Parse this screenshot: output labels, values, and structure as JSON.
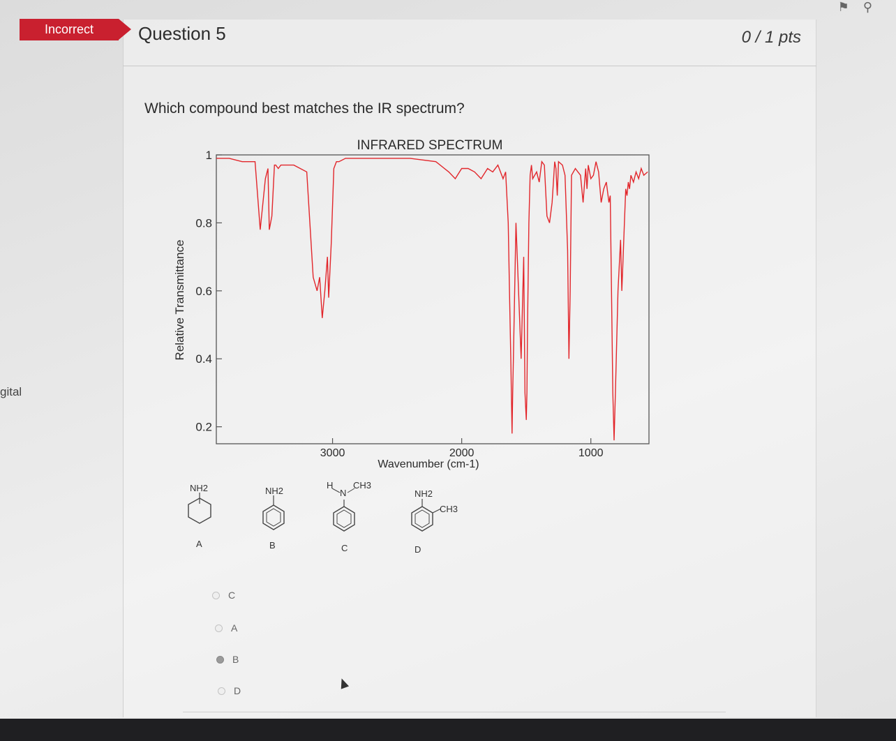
{
  "sidebar_fragment": "gital",
  "header": {
    "status_badge": "Incorrect",
    "question_title": "Question 5",
    "points": "0 / 1 pts"
  },
  "question": {
    "prompt": "Which compound best matches the IR spectrum?"
  },
  "chart_data": {
    "type": "line",
    "title": "INFRARED SPECTRUM",
    "xlabel": "Wavenumber (cm-1)",
    "ylabel": "Relative Transmittance",
    "x_reversed": true,
    "xlim": [
      3900,
      550
    ],
    "ylim": [
      0.15,
      1.0
    ],
    "xticks": [
      3000,
      2000,
      1000
    ],
    "yticks": [
      0.2,
      0.4,
      0.6,
      0.8,
      1
    ],
    "ytick_labels": [
      "0.2",
      "0.4",
      "0.6",
      "0.8",
      "1"
    ],
    "line_color": "#e2262b",
    "series": [
      {
        "x": [
          3900,
          3800,
          3700,
          3600,
          3560,
          3520,
          3500,
          3490,
          3470,
          3450,
          3440,
          3420,
          3400,
          3350,
          3300,
          3200,
          3150,
          3120,
          3100,
          3080,
          3060,
          3040,
          3030,
          3010,
          2990,
          2970,
          2950,
          2900,
          2800,
          2600,
          2400,
          2200,
          2100,
          2050,
          2000,
          1950,
          1900,
          1850,
          1800,
          1760,
          1720,
          1680,
          1660,
          1640,
          1630,
          1620,
          1610,
          1605,
          1600,
          1580,
          1560,
          1540,
          1520,
          1510,
          1500,
          1495,
          1490,
          1480,
          1470,
          1460,
          1450,
          1420,
          1400,
          1380,
          1360,
          1340,
          1320,
          1300,
          1280,
          1275,
          1270,
          1260,
          1250,
          1220,
          1200,
          1180,
          1170,
          1160,
          1150,
          1120,
          1100,
          1080,
          1060,
          1040,
          1030,
          1020,
          1000,
          980,
          960,
          940,
          920,
          900,
          880,
          860,
          850,
          840,
          830,
          820,
          810,
          790,
          770,
          760,
          750,
          740,
          730,
          720,
          710,
          700,
          690,
          670,
          650,
          630,
          610,
          590,
          560
        ],
        "values": [
          0.99,
          0.99,
          0.98,
          0.98,
          0.78,
          0.93,
          0.96,
          0.78,
          0.82,
          0.97,
          0.97,
          0.96,
          0.97,
          0.97,
          0.97,
          0.95,
          0.64,
          0.6,
          0.64,
          0.52,
          0.6,
          0.7,
          0.58,
          0.74,
          0.96,
          0.98,
          0.98,
          0.99,
          0.99,
          0.99,
          0.99,
          0.98,
          0.95,
          0.93,
          0.96,
          0.96,
          0.95,
          0.93,
          0.96,
          0.95,
          0.97,
          0.93,
          0.95,
          0.8,
          0.6,
          0.4,
          0.18,
          0.3,
          0.4,
          0.8,
          0.6,
          0.4,
          0.7,
          0.3,
          0.22,
          0.3,
          0.5,
          0.8,
          0.94,
          0.97,
          0.93,
          0.95,
          0.92,
          0.98,
          0.97,
          0.82,
          0.8,
          0.86,
          0.98,
          0.97,
          0.96,
          0.88,
          0.98,
          0.97,
          0.94,
          0.72,
          0.4,
          0.6,
          0.94,
          0.96,
          0.95,
          0.94,
          0.86,
          0.96,
          0.9,
          0.97,
          0.93,
          0.94,
          0.98,
          0.95,
          0.86,
          0.9,
          0.92,
          0.86,
          0.88,
          0.6,
          0.3,
          0.16,
          0.3,
          0.6,
          0.75,
          0.6,
          0.7,
          0.8,
          0.9,
          0.88,
          0.92,
          0.9,
          0.94,
          0.92,
          0.95,
          0.93,
          0.96,
          0.94,
          0.95
        ]
      }
    ]
  },
  "compounds": [
    {
      "label": "A",
      "substituents": [
        "NH2"
      ],
      "ring": "cyclohexane"
    },
    {
      "label": "B",
      "substituents": [
        "NH2"
      ],
      "ring": "benzene"
    },
    {
      "label": "C",
      "substituents": [
        "H",
        "N",
        "CH3"
      ],
      "ring": "benzene"
    },
    {
      "label": "D",
      "substituents": [
        "NH2",
        "CH3"
      ],
      "ring": "benzene"
    }
  ],
  "answers": [
    {
      "label": "C",
      "selected": false
    },
    {
      "label": "A",
      "selected": false
    },
    {
      "label": "B",
      "selected": true
    },
    {
      "label": "D",
      "selected": false
    }
  ]
}
